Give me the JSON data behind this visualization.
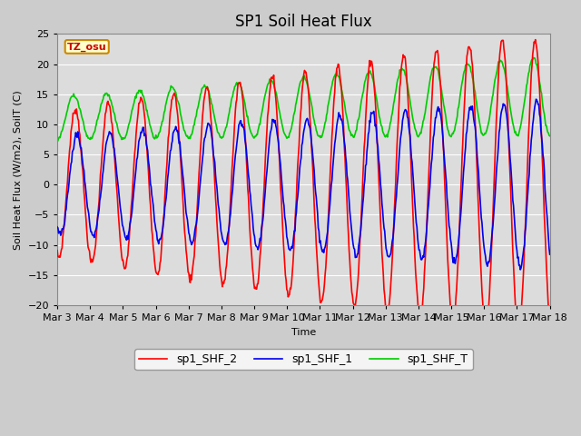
{
  "title": "SP1 Soil Heat Flux",
  "xlabel": "Time",
  "ylabel": "Soil Heat Flux (W/m2), SoilT (C)",
  "ylim": [
    -20,
    25
  ],
  "color_shf2": "#FF0000",
  "color_shf1": "#0000EE",
  "color_shft": "#00CC00",
  "legend_labels": [
    "sp1_SHF_2",
    "sp1_SHF_1",
    "sp1_SHF_T"
  ],
  "tz_label": "TZ_osu",
  "linewidth": 1.2,
  "title_fontsize": 12,
  "label_fontsize": 8,
  "tick_fontsize": 8
}
